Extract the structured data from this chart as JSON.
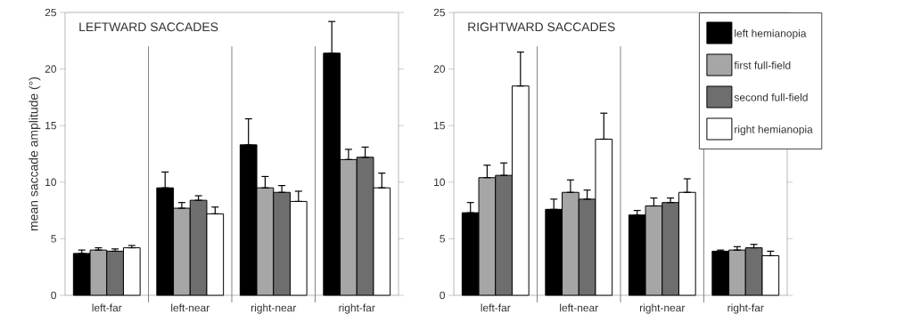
{
  "chart_data": [
    {
      "type": "bar",
      "title": "LEFTWARD SACCADES",
      "ylabel": "mean saccade amplitude (°)",
      "categories": [
        "left-far",
        "left-near",
        "right-near",
        "right-far"
      ],
      "ylim": [
        0,
        25
      ],
      "yticks": [
        0,
        5,
        10,
        15,
        20,
        25
      ],
      "series": [
        {
          "color": "#000000",
          "values": [
            3.7,
            9.5,
            13.3,
            21.4
          ],
          "errors": [
            [
              3.7,
              4.0
            ],
            [
              9.5,
              10.9
            ],
            [
              13.3,
              15.6
            ],
            [
              21.4,
              24.2
            ]
          ]
        },
        {
          "color": "#a6a6a6",
          "values": [
            4.0,
            7.7,
            9.5,
            12.0
          ],
          "errors": [
            [
              4.0,
              4.2
            ],
            [
              7.7,
              8.2
            ],
            [
              9.5,
              10.5
            ],
            [
              12.0,
              12.9
            ]
          ]
        },
        {
          "color": "#6e6e6e",
          "values": [
            3.9,
            8.4,
            9.1,
            12.2
          ],
          "errors": [
            [
              3.9,
              4.1
            ],
            [
              8.4,
              8.8
            ],
            [
              9.1,
              9.7
            ],
            [
              12.2,
              13.1
            ]
          ]
        },
        {
          "color": "#ffffff",
          "values": [
            4.2,
            7.2,
            8.3,
            9.5
          ],
          "errors": [
            [
              4.2,
              4.4
            ],
            [
              7.2,
              7.8
            ],
            [
              8.3,
              9.2
            ],
            [
              9.5,
              10.8
            ]
          ]
        }
      ]
    },
    {
      "type": "bar",
      "title": "RIGHTWARD SACCADES",
      "categories": [
        "left-far",
        "left-near",
        "right-near",
        "right-far"
      ],
      "ylim": [
        0,
        25
      ],
      "yticks": [
        0,
        5,
        10,
        15,
        20,
        25
      ],
      "legend": "top right",
      "series": [
        {
          "name": "left hemianopia",
          "color": "#000000",
          "values": [
            7.3,
            7.6,
            7.1,
            3.9
          ],
          "errors": [
            [
              7.3,
              8.2
            ],
            [
              7.6,
              8.5
            ],
            [
              7.1,
              7.5
            ],
            [
              3.9,
              4.0
            ]
          ]
        },
        {
          "name": "first full-field",
          "color": "#a6a6a6",
          "values": [
            10.4,
            9.1,
            7.9,
            4.0
          ],
          "errors": [
            [
              10.4,
              11.5
            ],
            [
              9.1,
              10.2
            ],
            [
              7.9,
              8.6
            ],
            [
              4.0,
              4.3
            ]
          ]
        },
        {
          "name": "second full-field",
          "color": "#6e6e6e",
          "values": [
            10.6,
            8.5,
            8.2,
            4.2
          ],
          "errors": [
            [
              10.6,
              11.7
            ],
            [
              8.5,
              9.3
            ],
            [
              8.2,
              8.6
            ],
            [
              4.2,
              4.5
            ]
          ]
        },
        {
          "name": "right hemianopia",
          "color": "#ffffff",
          "values": [
            18.5,
            13.8,
            9.1,
            3.5
          ],
          "errors": [
            [
              18.5,
              21.5
            ],
            [
              13.8,
              16.1
            ],
            [
              9.1,
              10.3
            ],
            [
              3.5,
              3.9
            ]
          ]
        }
      ]
    }
  ]
}
